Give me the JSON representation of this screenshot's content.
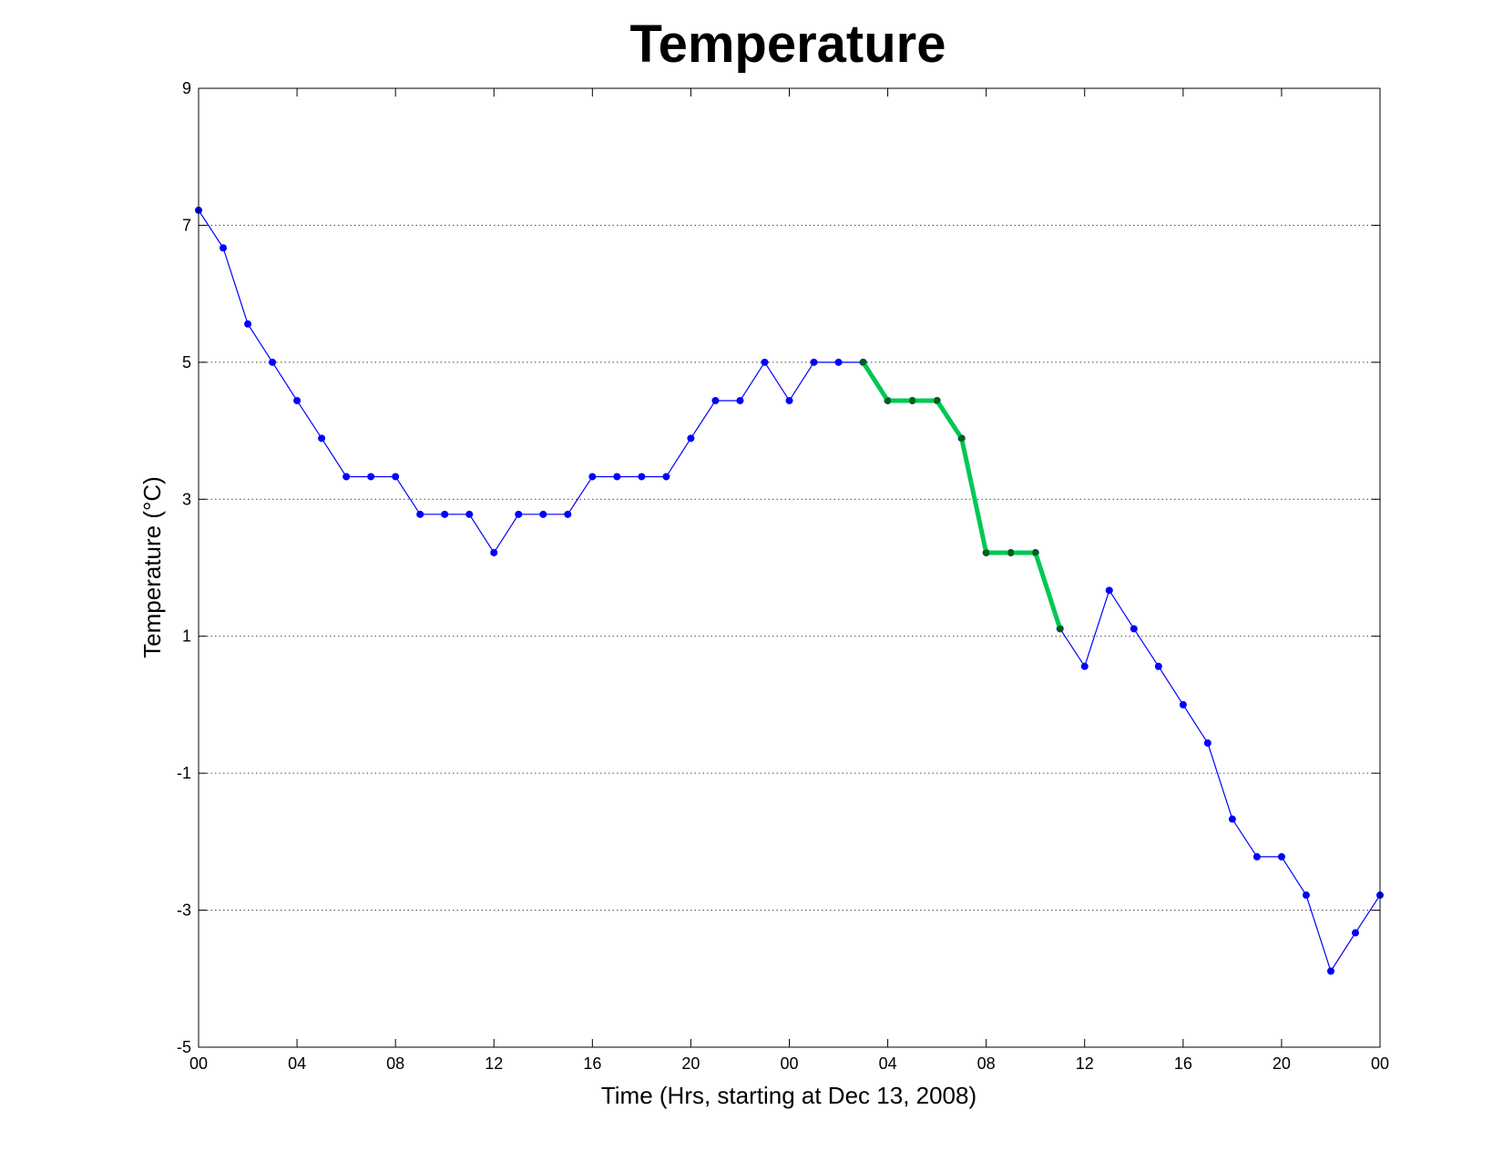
{
  "chart_data": {
    "type": "line",
    "title": "Temperature",
    "xlabel": "Time (Hrs, starting at Dec 13, 2008)",
    "ylabel": "Temperature (°C)",
    "xlim": [
      0,
      48
    ],
    "ylim": [
      -5,
      9
    ],
    "x_ticks": [
      0,
      4,
      8,
      12,
      16,
      20,
      24,
      28,
      32,
      36,
      40,
      44,
      48
    ],
    "x_tick_labels": [
      "00",
      "04",
      "08",
      "12",
      "16",
      "20",
      "00",
      "04",
      "08",
      "12",
      "16",
      "20",
      "00"
    ],
    "y_ticks": [
      -5,
      -3,
      -1,
      1,
      3,
      5,
      7,
      9
    ],
    "y_tick_labels": [
      "-5",
      "-3",
      "-1",
      "1",
      "3",
      "5",
      "7",
      "9"
    ],
    "y_grid": [
      -3,
      -1,
      1,
      3,
      5,
      7
    ],
    "grid": "horizontal dotted",
    "series": [
      {
        "color": "#0000ff",
        "x": [
          0,
          1,
          2,
          3,
          4,
          5,
          6,
          7,
          8,
          9,
          10,
          11,
          12,
          13,
          14,
          15,
          16,
          17,
          18,
          19,
          20,
          21,
          22,
          23,
          24,
          25,
          26,
          27,
          28,
          29,
          30,
          31,
          32,
          33,
          34,
          35,
          36,
          37,
          38,
          39,
          40,
          41,
          42,
          43,
          44,
          45,
          46,
          47,
          48
        ],
        "y": [
          7.22,
          6.67,
          5.56,
          5.0,
          4.44,
          3.89,
          3.33,
          3.33,
          3.33,
          2.78,
          2.78,
          2.78,
          2.22,
          2.78,
          2.78,
          2.78,
          3.33,
          3.33,
          3.33,
          3.33,
          3.89,
          4.44,
          4.44,
          5.0,
          4.44,
          5.0,
          5.0,
          5.0,
          4.44,
          4.44,
          4.44,
          3.89,
          2.22,
          2.22,
          2.22,
          1.11,
          0.56,
          1.67,
          1.11,
          0.56,
          0.0,
          -0.56,
          -1.67,
          -2.22,
          -2.22,
          -2.78,
          -3.89,
          -3.33,
          -2.78
        ]
      },
      {
        "color": "#00c853",
        "marker_color": "#006400",
        "x": [
          27,
          28,
          29,
          30,
          31,
          32,
          33,
          34,
          35
        ],
        "y": [
          5.0,
          4.44,
          4.44,
          4.44,
          3.89,
          2.22,
          2.22,
          2.22,
          1.11
        ]
      }
    ]
  }
}
